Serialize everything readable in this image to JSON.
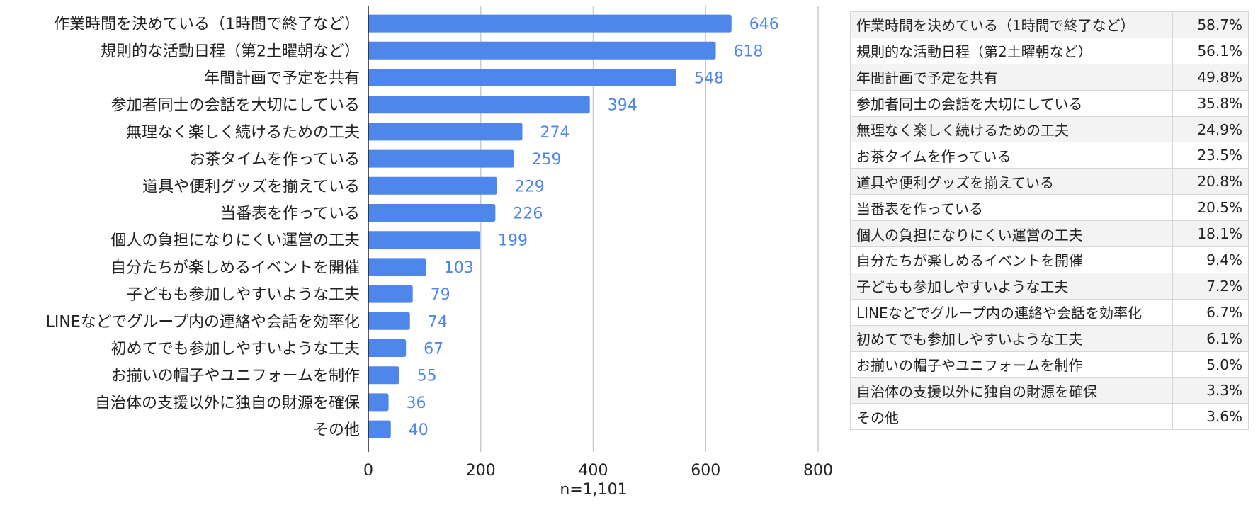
{
  "chart_data": {
    "type": "bar",
    "orientation": "horizontal",
    "categories": [
      "作業時間を決めている（1時間で終了など）",
      "規則的な活動日程（第2土曜朝など）",
      "年間計画で予定を共有",
      "参加者同士の会話を大切にしている",
      "無理なく楽しく続けるための工夫",
      "お茶タイムを作っている",
      "道具や便利グッズを揃えている",
      "当番表を作っている",
      "個人の負担になりにくい運営の工夫",
      "自分たちが楽しめるイベントを開催",
      "子どもも参加しやすいような工夫",
      "LINEなどでグループ内の連絡や会話を効率化",
      "初めてでも参加しやすいような工夫",
      "お揃いの帽子やユニフォームを制作",
      "自治体の支援以外に独自の財源を確保",
      "その他"
    ],
    "values": [
      646,
      618,
      548,
      394,
      274,
      259,
      229,
      226,
      199,
      103,
      79,
      74,
      67,
      55,
      36,
      40
    ],
    "xlim": [
      0,
      800
    ],
    "xticks": [
      0,
      200,
      400,
      600,
      800
    ],
    "xlabel": "n=1,101",
    "grid": true,
    "colors": {
      "bar": "#4f86ea",
      "value_label": "#4f86ea",
      "grid": "#cccccc",
      "axis": "#222222"
    }
  },
  "table": {
    "rows": [
      {
        "label": "作業時間を決めている（1時間で終了など）",
        "percent": "58.7%"
      },
      {
        "label": "規則的な活動日程（第2土曜朝など）",
        "percent": "56.1%"
      },
      {
        "label": "年間計画で予定を共有",
        "percent": "49.8%"
      },
      {
        "label": "参加者同士の会話を大切にしている",
        "percent": "35.8%"
      },
      {
        "label": "無理なく楽しく続けるための工夫",
        "percent": "24.9%"
      },
      {
        "label": "お茶タイムを作っている",
        "percent": "23.5%"
      },
      {
        "label": "道具や便利グッズを揃えている",
        "percent": "20.8%"
      },
      {
        "label": "当番表を作っている",
        "percent": "20.5%"
      },
      {
        "label": "個人の負担になりにくい運営の工夫",
        "percent": "18.1%"
      },
      {
        "label": "自分たちが楽しめるイベントを開催",
        "percent": "9.4%"
      },
      {
        "label": "子どもも参加しやすいような工夫",
        "percent": "7.2%"
      },
      {
        "label": "LINEなどでグループ内の連絡や会話を効率化",
        "percent": "6.7%"
      },
      {
        "label": "初めてでも参加しやすいような工夫",
        "percent": "6.1%"
      },
      {
        "label": "お揃いの帽子やユニフォームを制作",
        "percent": "5.0%"
      },
      {
        "label": "自治体の支援以外に独自の財源を確保",
        "percent": "3.3%"
      },
      {
        "label": "その他",
        "percent": "3.6%"
      }
    ]
  }
}
